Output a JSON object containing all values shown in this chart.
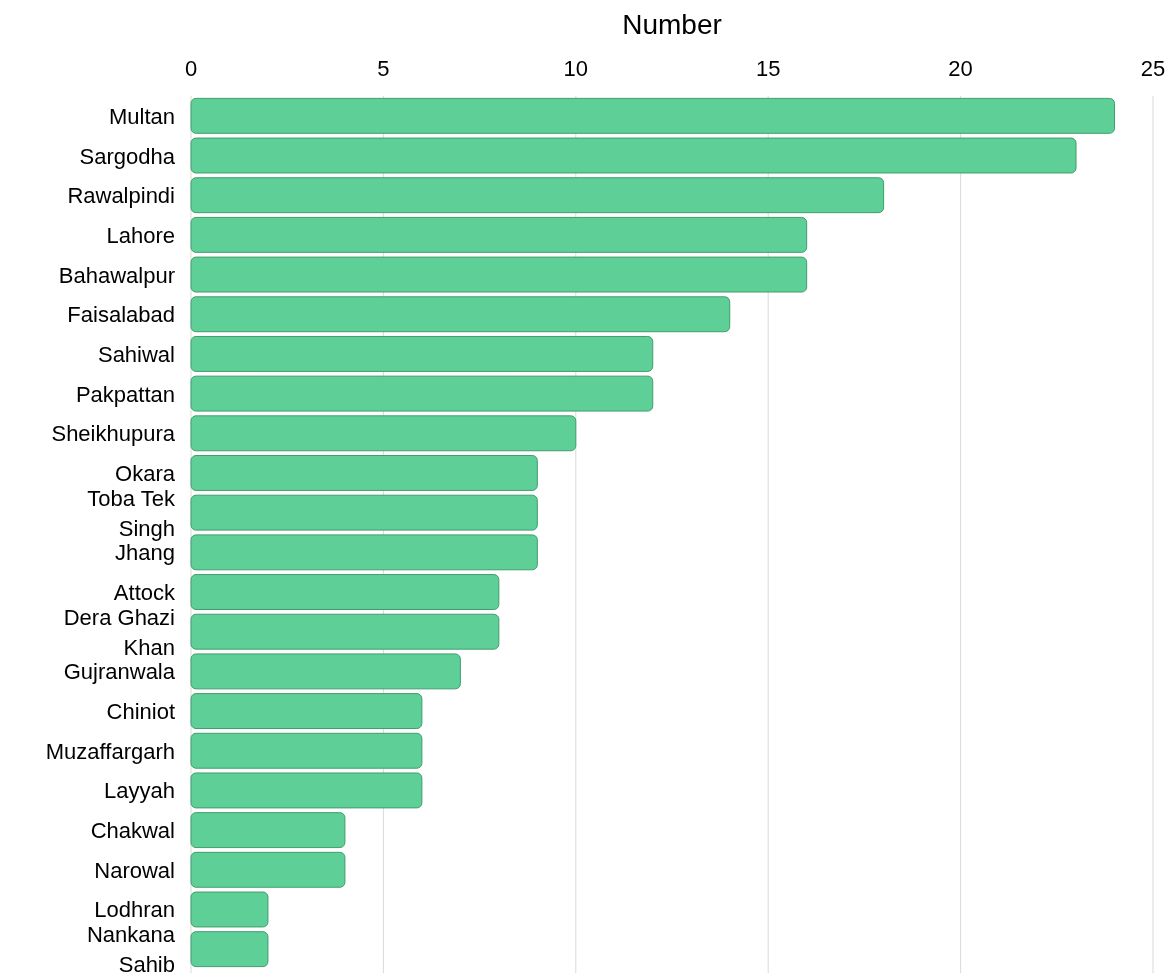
{
  "chart_data": {
    "type": "bar",
    "orientation": "horizontal",
    "xlabel": "Number",
    "categories": [
      "Multan",
      "Sargodha",
      "Rawalpindi",
      "Lahore",
      "Bahawalpur",
      "Faisalabad",
      "Sahiwal",
      "Pakpattan",
      "Sheikhupura",
      "Okara",
      "Toba Tek Singh",
      "Jhang",
      "Attock",
      "Dera Ghazi Khan",
      "Gujranwala",
      "Chiniot",
      "Muzaffargarh",
      "Layyah",
      "Chakwal",
      "Narowal",
      "Lodhran",
      "Nankana Sahib"
    ],
    "values": [
      24,
      23,
      18,
      16,
      16,
      14,
      12,
      12,
      10,
      9,
      9,
      9,
      8,
      8,
      7,
      6,
      6,
      6,
      4,
      4,
      2,
      2
    ],
    "color": "#5ecf96",
    "xlim": [
      0,
      25
    ],
    "xticks": [
      0,
      5,
      10,
      15,
      20,
      25
    ],
    "grid": "x"
  }
}
